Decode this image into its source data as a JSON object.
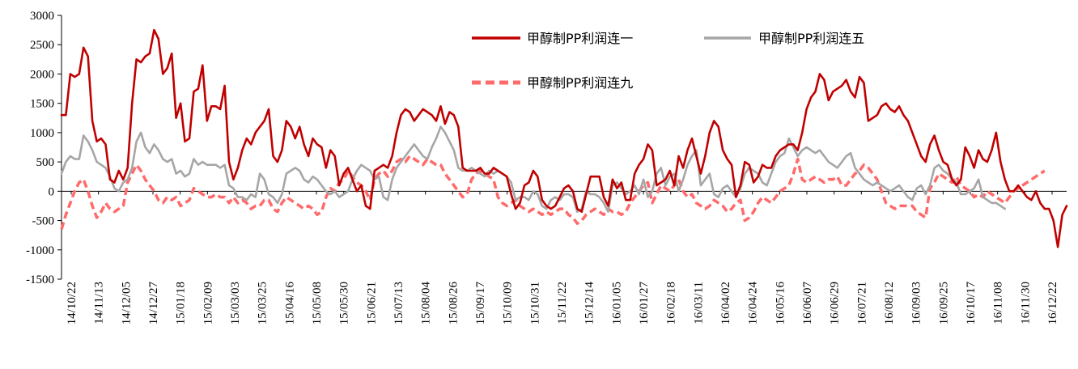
{
  "chart_data": {
    "type": "line",
    "title": "",
    "xlabel": "",
    "ylabel": "",
    "ylim": [
      -1500,
      3000
    ],
    "yticks": [
      3000,
      2500,
      2000,
      1500,
      1000,
      500,
      0,
      -500,
      -1000,
      -1500
    ],
    "x_tick_labels": [
      "14/10/22",
      "14/11/13",
      "14/12/05",
      "14/12/27",
      "15/01/18",
      "15/02/09",
      "15/03/03",
      "15/03/25",
      "15/04/16",
      "15/05/08",
      "15/05/30",
      "15/06/21",
      "15/07/13",
      "15/08/04",
      "15/08/26",
      "15/09/17",
      "15/10/09",
      "15/10/31",
      "15/11/22",
      "15/12/14",
      "16/01/05",
      "16/01/27",
      "16/02/18",
      "16/03/11",
      "16/04/02",
      "16/04/24",
      "16/05/16",
      "16/06/07",
      "16/06/29",
      "16/07/21",
      "16/08/12",
      "16/09/03",
      "16/09/25",
      "16/10/17",
      "16/11/08",
      "16/11/30",
      "16/12/22"
    ],
    "legend_position": "top-right",
    "series": [
      {
        "name": "甲醇制PP利润连一",
        "color": "#C00000",
        "style": "solid",
        "values": [
          1300,
          1300,
          2000,
          1950,
          2000,
          2450,
          2300,
          1200,
          850,
          900,
          800,
          200,
          150,
          350,
          200,
          400,
          1500,
          2250,
          2200,
          2300,
          2350,
          2750,
          2600,
          2000,
          2100,
          2350,
          1250,
          1500,
          850,
          900,
          1700,
          1750,
          2150,
          1200,
          1450,
          1450,
          1400,
          1800,
          500,
          200,
          400,
          700,
          900,
          800,
          1000,
          1100,
          1200,
          1400,
          600,
          500,
          700,
          1200,
          1100,
          900,
          1100,
          800,
          600,
          900,
          800,
          750,
          400,
          700,
          600,
          100,
          300,
          400,
          200,
          0,
          100,
          -250,
          -300,
          350,
          400,
          450,
          400,
          600,
          1000,
          1300,
          1400,
          1350,
          1200,
          1300,
          1400,
          1350,
          1300,
          1200,
          1450,
          1150,
          1350,
          1300,
          1100,
          400,
          350,
          350,
          350,
          400,
          300,
          300,
          400,
          350,
          300,
          250,
          -50,
          -300,
          -200,
          100,
          150,
          350,
          250,
          -150,
          -250,
          -300,
          -250,
          -100,
          50,
          100,
          0,
          -300,
          -350,
          -50,
          250,
          250,
          250,
          -100,
          -250,
          200,
          50,
          150,
          -150,
          -150,
          300,
          450,
          550,
          800,
          700,
          100,
          150,
          200,
          350,
          100,
          600,
          400,
          700,
          900,
          600,
          300,
          600,
          1000,
          1200,
          1100,
          700,
          550,
          450,
          -100,
          100,
          500,
          450,
          150,
          250,
          450,
          400,
          400,
          600,
          700,
          750,
          800,
          800,
          700,
          1000,
          1400,
          1600,
          1700,
          2000,
          1900,
          1550,
          1700,
          1750,
          1800,
          1900,
          1700,
          1600,
          1950,
          1850,
          1200,
          1250,
          1300,
          1450,
          1500,
          1400,
          1350,
          1450,
          1300,
          1200,
          1000,
          800,
          600,
          500,
          800,
          950,
          700,
          500,
          450,
          200,
          100,
          200,
          750,
          600,
          400,
          700,
          550,
          500,
          700,
          1000,
          500,
          200,
          0,
          0,
          100,
          0,
          -100,
          -150,
          0,
          -200,
          -300,
          -300,
          -500,
          -950,
          -400,
          -250
        ]
      },
      {
        "name": "甲醇制PP利润连五",
        "color": "#A6A6A6",
        "style": "solid",
        "values": [
          300,
          500,
          600,
          550,
          550,
          950,
          850,
          700,
          500,
          450,
          400,
          250,
          50,
          0,
          150,
          200,
          400,
          850,
          1000,
          750,
          650,
          800,
          700,
          550,
          500,
          550,
          300,
          350,
          250,
          300,
          550,
          450,
          500,
          450,
          450,
          450,
          400,
          450,
          100,
          50,
          -100,
          -100,
          -150,
          -50,
          -100,
          300,
          200,
          -50,
          -100,
          -200,
          -50,
          300,
          350,
          400,
          350,
          200,
          150,
          250,
          200,
          100,
          0,
          -50,
          0,
          -100,
          -50,
          0,
          200,
          350,
          450,
          400,
          350,
          200,
          250,
          -100,
          -150,
          200,
          400,
          500,
          600,
          700,
          800,
          700,
          600,
          550,
          750,
          900,
          1100,
          1000,
          850,
          700,
          400,
          350,
          350,
          400,
          350,
          300,
          250,
          350,
          300,
          350,
          300,
          250,
          150,
          -150,
          -100,
          -100,
          -150,
          0,
          -50,
          -250,
          -300,
          -150,
          -100,
          -150,
          -50,
          -50,
          -100,
          -350,
          -300,
          0,
          -50,
          -50,
          -100,
          -200,
          -350,
          100,
          150,
          50,
          -50,
          0,
          100,
          -50,
          200,
          -100,
          0,
          300,
          400,
          100,
          250,
          300,
          0,
          200,
          450,
          600,
          700,
          100,
          200,
          300,
          -50,
          -100,
          50,
          100,
          0,
          -100,
          50,
          300,
          400,
          350,
          300,
          150,
          100,
          300,
          500,
          600,
          650,
          900,
          750,
          600,
          700,
          750,
          700,
          650,
          700,
          600,
          500,
          450,
          400,
          500,
          600,
          650,
          400,
          300,
          200,
          150,
          100,
          150,
          100,
          50,
          0,
          50,
          100,
          0,
          -100,
          -150,
          50,
          100,
          -50,
          100,
          400,
          450,
          350,
          300,
          200,
          150,
          -50,
          -50,
          0,
          50,
          200,
          -100,
          -150,
          -200,
          -200,
          -250,
          -300
        ]
      },
      {
        "name": "甲醇制PP利润连九",
        "color": "#FF6A6A",
        "style": "dashed",
        "values": [
          -650,
          -400,
          -200,
          0,
          150,
          200,
          0,
          -250,
          -450,
          -350,
          -200,
          -300,
          -350,
          -300,
          -250,
          150,
          300,
          450,
          350,
          200,
          100,
          0,
          -150,
          -200,
          -100,
          -150,
          -100,
          -250,
          -200,
          -150,
          50,
          0,
          -50,
          -100,
          -100,
          -50,
          -100,
          -100,
          -200,
          -100,
          -200,
          -150,
          -200,
          -300,
          -250,
          -250,
          -150,
          -150,
          -300,
          -350,
          -200,
          -100,
          -150,
          -200,
          -250,
          -300,
          -250,
          -300,
          -400,
          -350,
          -100,
          50,
          0,
          150,
          200,
          350,
          250,
          150,
          100,
          0,
          -150,
          200,
          300,
          350,
          250,
          350,
          500,
          550,
          500,
          600,
          550,
          500,
          450,
          550,
          500,
          450,
          450,
          300,
          200,
          100,
          0,
          -100,
          -50,
          200,
          300,
          350,
          300,
          250,
          200,
          -100,
          -200,
          -250,
          -200,
          -150,
          -250,
          -300,
          -350,
          -300,
          -350,
          -400,
          -350,
          -400,
          -350,
          -300,
          -300,
          -400,
          -450,
          -550,
          -500,
          -400,
          -350,
          -300,
          -350,
          -400,
          -300,
          -350,
          -350,
          -400,
          -350,
          -200,
          -100,
          0,
          100,
          150,
          -200,
          -50,
          100,
          50,
          0,
          100,
          200,
          0,
          -100,
          -50,
          -200,
          -250,
          -300,
          -250,
          -150,
          -200,
          -250,
          -350,
          -300,
          -200,
          -150,
          -500,
          -450,
          -350,
          -200,
          -100,
          -150,
          -200,
          -100,
          0,
          50,
          100,
          300,
          550,
          200,
          150,
          200,
          250,
          200,
          150,
          200,
          200,
          250,
          100,
          100,
          200,
          300,
          350,
          450,
          400,
          300,
          200,
          0,
          -200,
          -250,
          -300,
          -250,
          -250,
          -250,
          -250,
          -350,
          -400,
          -450,
          50,
          150,
          300,
          250,
          200,
          150,
          250,
          100,
          50,
          0,
          -100,
          -50,
          -100,
          0,
          -50,
          -100,
          -150,
          -200,
          -100,
          0,
          50,
          100,
          150,
          200,
          250,
          300,
          350
        ]
      }
    ]
  }
}
